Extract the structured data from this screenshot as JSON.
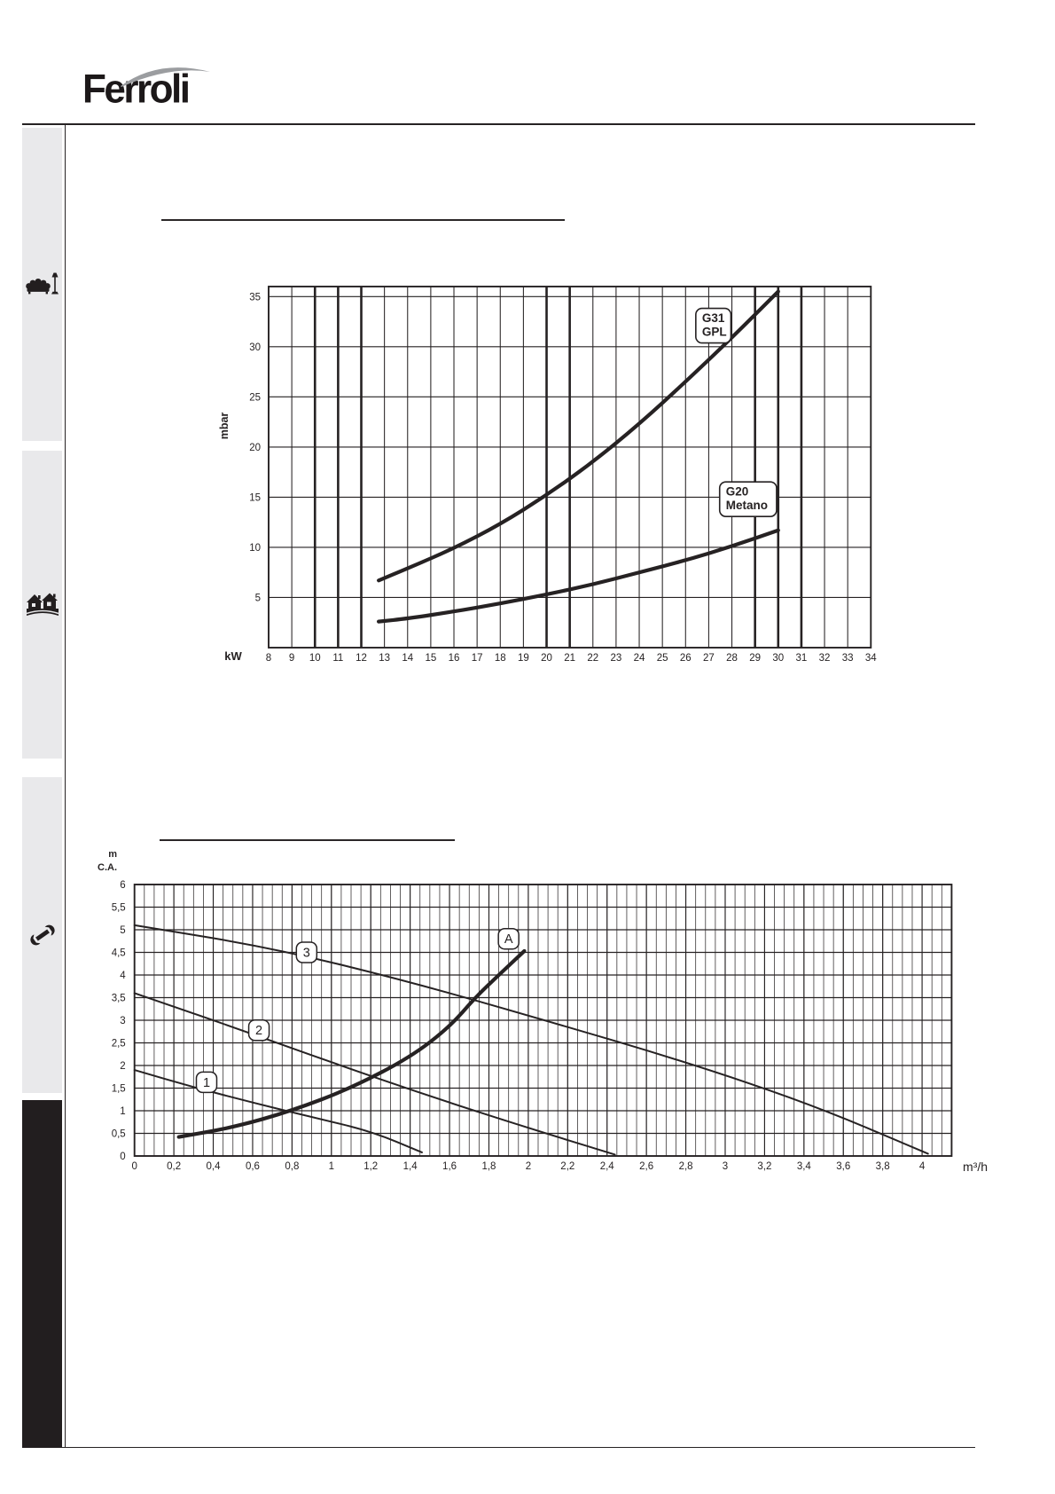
{
  "page": {
    "bg": "#ffffff",
    "ink": "#262223"
  },
  "header": {
    "logo_text": "Ferroli",
    "logo_swoosh_color": "#9b9da0"
  },
  "sidebar": {
    "tab_bg": "#e9e9eb",
    "active_bg": "#221e1f",
    "tabs": [
      {
        "id": "tab-1",
        "icon": "sofa-lamp-icon"
      },
      {
        "id": "tab-2",
        "icon": "houses-icon"
      },
      {
        "id": "tab-3",
        "icon": "wrench-icon"
      },
      {
        "id": "tab-4",
        "icon": "none"
      }
    ]
  },
  "chart_data": [
    {
      "type": "line",
      "title": "",
      "xlabel": "kW",
      "ylabel": "mbar",
      "xlim": [
        8,
        34
      ],
      "ylim": [
        0,
        36
      ],
      "grid": true,
      "x_ticks": {
        "values": [
          8,
          9,
          10,
          11,
          12,
          13,
          14,
          15,
          16,
          17,
          18,
          19,
          20,
          21,
          22,
          23,
          24,
          25,
          26,
          27,
          28,
          29,
          30,
          31,
          32,
          33,
          34
        ],
        "labels": [
          "8",
          "9",
          "10",
          "11",
          "12",
          "13",
          "14",
          "15",
          "16",
          "17",
          "18",
          "19",
          "20",
          "21",
          "22",
          "23",
          "24",
          "25",
          "26",
          "27",
          "28",
          "29",
          "30",
          "31",
          "32",
          "33",
          "34"
        ]
      },
      "y_ticks": {
        "values": [
          5,
          10,
          15,
          20,
          25,
          30,
          35
        ],
        "labels": [
          "5",
          "10",
          "15",
          "20",
          "25",
          "30",
          "35"
        ]
      },
      "bold_x_gridlines": [
        10,
        11,
        12,
        20,
        21,
        29,
        30,
        31
      ],
      "series": [
        {
          "name": "G31 GPL",
          "label_lines": [
            "G31",
            "GPL"
          ],
          "label_at": [
            27.2,
            32.1
          ],
          "stroke_width": 4.2,
          "points": [
            [
              12.75,
              6.7
            ],
            [
              14,
              7.9
            ],
            [
              16,
              9.9
            ],
            [
              18,
              12.3
            ],
            [
              20,
              15.2
            ],
            [
              22,
              18.5
            ],
            [
              24,
              22.3
            ],
            [
              26,
              26.5
            ],
            [
              28,
              30.9
            ],
            [
              30,
              35.5
            ]
          ]
        },
        {
          "name": "G20 Metano",
          "label_lines": [
            "G20",
            "Metano"
          ],
          "label_at": [
            28.7,
            14.8
          ],
          "stroke_width": 4.2,
          "points": [
            [
              12.75,
              2.6
            ],
            [
              14,
              2.9
            ],
            [
              16,
              3.6
            ],
            [
              18,
              4.4
            ],
            [
              20,
              5.3
            ],
            [
              22,
              6.3
            ],
            [
              24,
              7.5
            ],
            [
              26,
              8.7
            ],
            [
              28,
              10.1
            ],
            [
              30,
              11.7
            ]
          ]
        }
      ]
    },
    {
      "type": "line",
      "title": "",
      "xlabel": "m³/h",
      "ylabel_lines": [
        "m",
        "C.A."
      ],
      "xlim": [
        0,
        4.15
      ],
      "ylim": [
        0,
        6
      ],
      "grid": true,
      "x_minor_step": 0.05,
      "x_ticks": {
        "values": [
          0,
          0.2,
          0.4,
          0.6,
          0.8,
          1,
          1.2,
          1.4,
          1.6,
          1.8,
          2,
          2.2,
          2.4,
          2.6,
          2.8,
          3,
          3.2,
          3.4,
          3.6,
          3.8,
          4
        ],
        "labels": [
          "0",
          "0,2",
          "0,4",
          "0,6",
          "0,8",
          "1",
          "1,2",
          "1,4",
          "1,6",
          "1,8",
          "2",
          "2,2",
          "2,4",
          "2,6",
          "2,8",
          "3",
          "3,2",
          "3,4",
          "3,6",
          "3,8",
          "4"
        ]
      },
      "y_ticks": {
        "values": [
          0,
          0.5,
          1,
          1.5,
          2,
          2.5,
          3,
          3.5,
          4,
          4.5,
          5,
          5.5,
          6
        ],
        "labels": [
          "0",
          "0,5",
          "1",
          "1,5",
          "2",
          "2,5",
          "3",
          "3,5",
          "4",
          "4,5",
          "5",
          "5,5",
          "6"
        ]
      },
      "series": [
        {
          "name": "1",
          "badge": "1",
          "badge_at": [
            0.366,
            1.63
          ],
          "stroke_width": 2,
          "points": [
            [
              0,
              1.9
            ],
            [
              0.3,
              1.52
            ],
            [
              0.6,
              1.18
            ],
            [
              0.9,
              0.86
            ],
            [
              1.2,
              0.55
            ],
            [
              1.46,
              0.08
            ]
          ]
        },
        {
          "name": "2",
          "badge": "2",
          "badge_at": [
            0.632,
            2.78
          ],
          "stroke_width": 2,
          "points": [
            [
              0,
              3.6
            ],
            [
              0.5,
              2.85
            ],
            [
              1.0,
              2.07
            ],
            [
              1.5,
              1.32
            ],
            [
              2.0,
              0.62
            ],
            [
              2.44,
              0.03
            ]
          ]
        },
        {
          "name": "3",
          "badge": "3",
          "badge_at": [
            0.874,
            4.5
          ],
          "stroke_width": 2,
          "points": [
            [
              0,
              5.1
            ],
            [
              0.7,
              4.6
            ],
            [
              1.4,
              3.85
            ],
            [
              2.1,
              2.98
            ],
            [
              2.8,
              2.08
            ],
            [
              3.45,
              1.12
            ],
            [
              4.03,
              0.05
            ]
          ]
        },
        {
          "name": "A",
          "badge": "A",
          "badge_at": [
            1.9,
            4.8
          ],
          "stroke_width": 4.2,
          "points": [
            [
              0.225,
              0.42
            ],
            [
              0.5,
              0.63
            ],
            [
              0.8,
              1.0
            ],
            [
              1.1,
              1.5
            ],
            [
              1.4,
              2.18
            ],
            [
              1.6,
              2.85
            ],
            [
              1.73,
              3.5
            ],
            [
              1.85,
              4.0
            ],
            [
              1.98,
              4.53
            ]
          ]
        }
      ]
    }
  ]
}
